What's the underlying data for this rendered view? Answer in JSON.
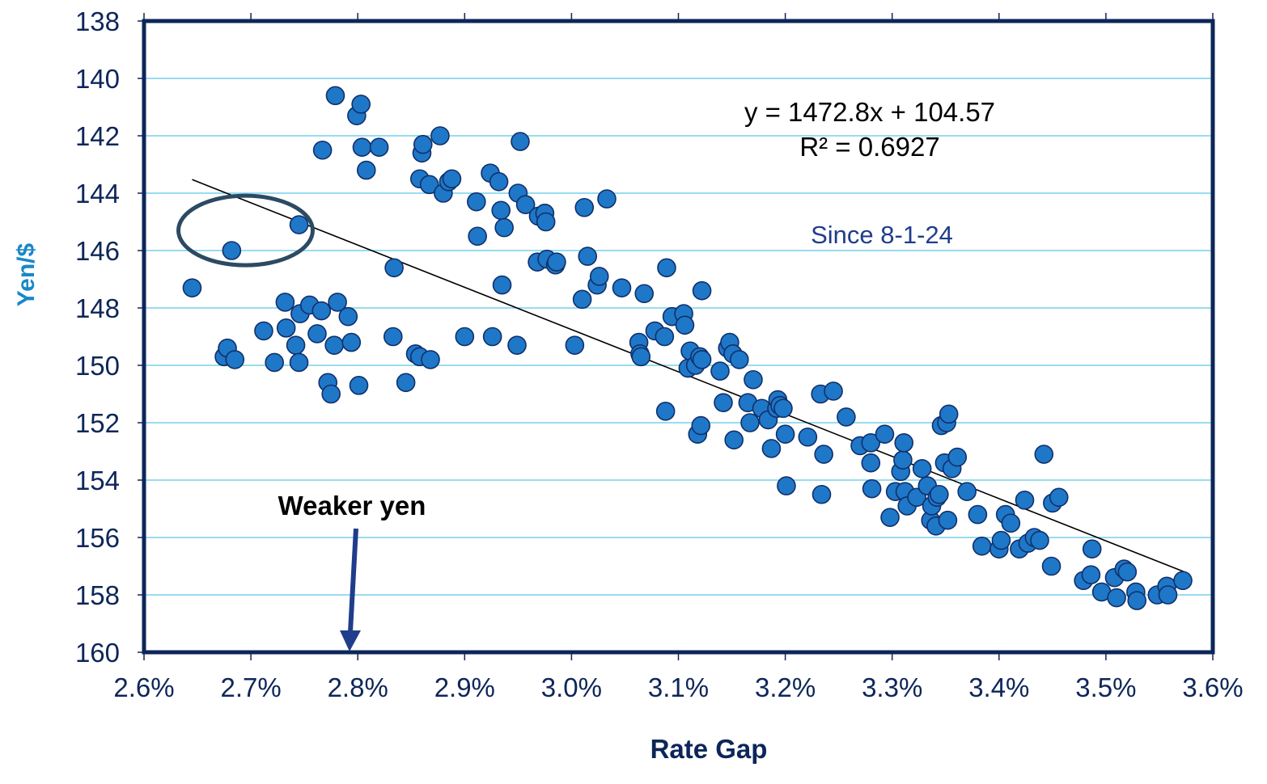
{
  "chart_data": {
    "type": "scatter",
    "title": "",
    "xlabel": "Rate Gap",
    "ylabel": "Yen/$",
    "xlim": [
      2.6,
      3.6
    ],
    "ylim": [
      138,
      160
    ],
    "y_inverted": true,
    "x_ticks": [
      2.6,
      2.7,
      2.8,
      2.9,
      3.0,
      3.1,
      3.2,
      3.3,
      3.4,
      3.5,
      3.6
    ],
    "x_tick_labels": [
      "2.6%",
      "2.7%",
      "2.8%",
      "2.9%",
      "3.0%",
      "3.1%",
      "3.2%",
      "3.3%",
      "3.4%",
      "3.5%",
      "3.6%"
    ],
    "y_ticks": [
      138,
      140,
      142,
      144,
      146,
      148,
      150,
      152,
      154,
      156,
      158,
      160
    ],
    "y_tick_labels": [
      "138",
      "140",
      "142",
      "144",
      "146",
      "148",
      "150",
      "152",
      "154",
      "156",
      "158",
      "160"
    ],
    "grid": "horizontal",
    "colors": {
      "points": "#1f77c8",
      "point_outline": "#10306a",
      "frame": "#0d2659",
      "grid": "#5ac8e8",
      "axis_label": "#1a87c9",
      "tick_label": "#0d2659",
      "annotation": "#1f3d8a",
      "ellipse": "#2c4a63"
    },
    "trendline": {
      "slope": 1472.8,
      "intercept": 104.57,
      "x_range": [
        2.645,
        3.575
      ],
      "equation_label": "y = 1472.8x + 104.57",
      "r2_label": "R² = 0.6927"
    },
    "annotations": {
      "since": "Since 8-1-24",
      "weaker_yen": "Weaker yen"
    },
    "highlight": {
      "shape": "ellipse",
      "center": [
        2.695,
        145.3
      ],
      "note": "circled points"
    },
    "points": [
      [
        2.645,
        147.3
      ],
      [
        2.675,
        149.7
      ],
      [
        2.678,
        149.4
      ],
      [
        2.685,
        149.8
      ],
      [
        2.682,
        146.0
      ],
      [
        2.712,
        148.8
      ],
      [
        2.722,
        149.9
      ],
      [
        2.732,
        147.8
      ],
      [
        2.733,
        148.7
      ],
      [
        2.742,
        149.3
      ],
      [
        2.745,
        149.9
      ],
      [
        2.746,
        148.2
      ],
      [
        2.745,
        145.1
      ],
      [
        2.755,
        147.9
      ],
      [
        2.762,
        148.9
      ],
      [
        2.766,
        148.1
      ],
      [
        2.767,
        142.5
      ],
      [
        2.772,
        150.6
      ],
      [
        2.775,
        151.0
      ],
      [
        2.778,
        149.3
      ],
      [
        2.779,
        140.6
      ],
      [
        2.781,
        147.8
      ],
      [
        2.791,
        148.3
      ],
      [
        2.794,
        149.2
      ],
      [
        2.799,
        141.3
      ],
      [
        2.801,
        150.7
      ],
      [
        2.803,
        140.9
      ],
      [
        2.804,
        142.4
      ],
      [
        2.808,
        143.2
      ],
      [
        2.82,
        142.4
      ],
      [
        2.834,
        146.6
      ],
      [
        2.833,
        149.0
      ],
      [
        2.845,
        150.6
      ],
      [
        2.854,
        149.6
      ],
      [
        2.858,
        149.7
      ],
      [
        2.858,
        143.5
      ],
      [
        2.86,
        142.6
      ],
      [
        2.861,
        142.3
      ],
      [
        2.868,
        149.8
      ],
      [
        2.867,
        143.7
      ],
      [
        2.877,
        142.0
      ],
      [
        2.88,
        144.0
      ],
      [
        2.885,
        143.6
      ],
      [
        2.888,
        143.5
      ],
      [
        2.9,
        149.0
      ],
      [
        2.911,
        144.3
      ],
      [
        2.912,
        145.5
      ],
      [
        2.924,
        143.3
      ],
      [
        2.926,
        149.0
      ],
      [
        2.932,
        143.6
      ],
      [
        2.934,
        144.6
      ],
      [
        2.935,
        147.2
      ],
      [
        2.937,
        145.2
      ],
      [
        2.949,
        149.3
      ],
      [
        2.95,
        144.0
      ],
      [
        2.952,
        142.2
      ],
      [
        2.957,
        144.4
      ],
      [
        2.968,
        146.4
      ],
      [
        2.969,
        144.8
      ],
      [
        2.975,
        144.7
      ],
      [
        2.976,
        145.0
      ],
      [
        2.977,
        146.3
      ],
      [
        2.985,
        146.5
      ],
      [
        2.986,
        146.4
      ],
      [
        3.003,
        149.3
      ],
      [
        3.01,
        147.7
      ],
      [
        3.012,
        144.5
      ],
      [
        3.015,
        146.2
      ],
      [
        3.024,
        147.2
      ],
      [
        3.026,
        146.9
      ],
      [
        3.033,
        144.2
      ],
      [
        3.047,
        147.3
      ],
      [
        3.063,
        149.2
      ],
      [
        3.064,
        149.6
      ],
      [
        3.065,
        149.7
      ],
      [
        3.068,
        147.5
      ],
      [
        3.078,
        148.8
      ],
      [
        3.087,
        149.0
      ],
      [
        3.088,
        151.6
      ],
      [
        3.089,
        146.6
      ],
      [
        3.094,
        148.3
      ],
      [
        3.105,
        148.2
      ],
      [
        3.106,
        148.6
      ],
      [
        3.109,
        150.1
      ],
      [
        3.111,
        149.5
      ],
      [
        3.116,
        150.0
      ],
      [
        3.118,
        152.4
      ],
      [
        3.12,
        149.7
      ],
      [
        3.121,
        152.1
      ],
      [
        3.122,
        149.8
      ],
      [
        3.122,
        147.4
      ],
      [
        3.139,
        150.2
      ],
      [
        3.142,
        151.3
      ],
      [
        3.146,
        149.4
      ],
      [
        3.148,
        149.2
      ],
      [
        3.151,
        149.6
      ],
      [
        3.152,
        152.6
      ],
      [
        3.157,
        149.8
      ],
      [
        3.165,
        151.3
      ],
      [
        3.167,
        152.0
      ],
      [
        3.17,
        150.5
      ],
      [
        3.178,
        151.5
      ],
      [
        3.184,
        151.9
      ],
      [
        3.187,
        152.9
      ],
      [
        3.192,
        151.5
      ],
      [
        3.193,
        151.2
      ],
      [
        3.195,
        151.4
      ],
      [
        3.198,
        151.5
      ],
      [
        3.2,
        152.4
      ],
      [
        3.201,
        154.2
      ],
      [
        3.221,
        152.5
      ],
      [
        3.233,
        151.0
      ],
      [
        3.234,
        154.5
      ],
      [
        3.236,
        153.1
      ],
      [
        3.245,
        150.9
      ],
      [
        3.257,
        151.8
      ],
      [
        3.27,
        152.8
      ],
      [
        3.28,
        152.7
      ],
      [
        3.281,
        154.3
      ],
      [
        3.28,
        153.4
      ],
      [
        3.293,
        152.4
      ],
      [
        3.298,
        155.3
      ],
      [
        3.303,
        154.4
      ],
      [
        3.308,
        153.7
      ],
      [
        3.31,
        153.3
      ],
      [
        3.311,
        152.7
      ],
      [
        3.312,
        154.4
      ],
      [
        3.314,
        154.9
      ],
      [
        3.323,
        154.6
      ],
      [
        3.328,
        153.6
      ],
      [
        3.333,
        154.2
      ],
      [
        3.336,
        155.4
      ],
      [
        3.337,
        154.9
      ],
      [
        3.341,
        155.6
      ],
      [
        3.342,
        154.6
      ],
      [
        3.344,
        154.5
      ],
      [
        3.346,
        152.1
      ],
      [
        3.349,
        153.4
      ],
      [
        3.351,
        152.0
      ],
      [
        3.352,
        155.4
      ],
      [
        3.353,
        151.7
      ],
      [
        3.356,
        153.6
      ],
      [
        3.361,
        153.2
      ],
      [
        3.37,
        154.4
      ],
      [
        3.38,
        155.2
      ],
      [
        3.384,
        156.3
      ],
      [
        3.4,
        156.4
      ],
      [
        3.402,
        156.1
      ],
      [
        3.406,
        155.2
      ],
      [
        3.411,
        155.5
      ],
      [
        3.419,
        156.4
      ],
      [
        3.424,
        154.7
      ],
      [
        3.427,
        156.2
      ],
      [
        3.433,
        156.0
      ],
      [
        3.438,
        156.1
      ],
      [
        3.442,
        153.1
      ],
      [
        3.449,
        157.0
      ],
      [
        3.45,
        154.8
      ],
      [
        3.456,
        154.6
      ],
      [
        3.479,
        157.5
      ],
      [
        3.486,
        157.3
      ],
      [
        3.487,
        156.4
      ],
      [
        3.496,
        157.9
      ],
      [
        3.508,
        157.4
      ],
      [
        3.51,
        158.1
      ],
      [
        3.517,
        157.1
      ],
      [
        3.52,
        157.2
      ],
      [
        3.528,
        157.9
      ],
      [
        3.529,
        158.2
      ],
      [
        3.548,
        158.0
      ],
      [
        3.557,
        157.7
      ],
      [
        3.558,
        158.0
      ],
      [
        3.572,
        157.5
      ]
    ]
  }
}
